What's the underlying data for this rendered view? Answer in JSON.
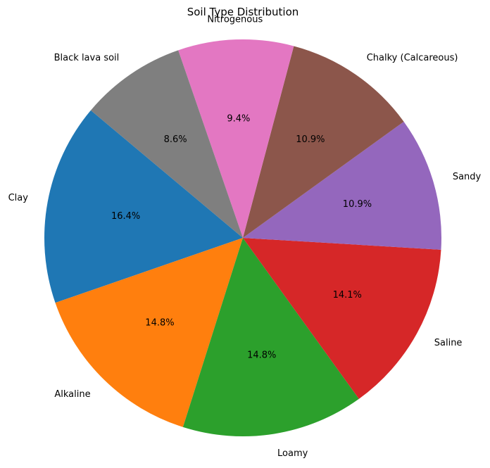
{
  "chart_data": {
    "type": "pie",
    "title": "Soil Type Distribution",
    "categories": [
      "Clay",
      "Alkaline",
      "Loamy",
      "Saline",
      "Sandy",
      "Chalky (Calcareous)",
      "Nitrogenous",
      "Black lava soil"
    ],
    "values": [
      16.4,
      14.8,
      14.8,
      14.1,
      10.9,
      10.9,
      9.4,
      8.6
    ],
    "value_labels": [
      "16.4%",
      "14.8%",
      "14.8%",
      "14.1%",
      "10.9%",
      "10.9%",
      "9.4%",
      "8.6%"
    ],
    "colors": [
      "#1f77b4",
      "#ff7f0e",
      "#2ca02c",
      "#d62728",
      "#9467bd",
      "#8c564b",
      "#e377c2",
      "#7f7f7f"
    ],
    "start_angle_deg": 140,
    "direction": "counterclockwise"
  }
}
